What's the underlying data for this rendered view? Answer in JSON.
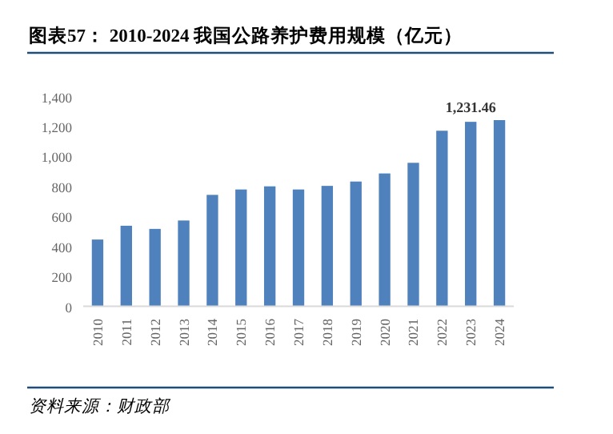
{
  "chart_data": {
    "type": "bar",
    "title": "图表57：  2010-2024  我国公路养护费用规模（亿元）",
    "categories": [
      "2010",
      "2011",
      "2012",
      "2013",
      "2014",
      "2015",
      "2016",
      "2017",
      "2018",
      "2019",
      "2020",
      "2021",
      "2022",
      "2023",
      "2024"
    ],
    "values": [
      446,
      538,
      517,
      573,
      744,
      780,
      801,
      780,
      804,
      833,
      887,
      958,
      1172,
      1231.46,
      1243
    ],
    "value_labels": [
      null,
      null,
      null,
      null,
      null,
      null,
      null,
      null,
      null,
      null,
      null,
      null,
      null,
      "1,231.46",
      null
    ],
    "color": "#4f81bd",
    "ylim": [
      0,
      1400
    ],
    "yticks": [
      {
        "value": 0,
        "label": "0"
      },
      {
        "value": 200,
        "label": "200"
      },
      {
        "value": 400,
        "label": "400"
      },
      {
        "value": 600,
        "label": "600"
      },
      {
        "value": 800,
        "label": "800"
      },
      {
        "value": 1000,
        "label": "1,000"
      },
      {
        "value": 1200,
        "label": "1,200"
      },
      {
        "value": 1400,
        "label": "1,400"
      }
    ],
    "annotations": [
      "资料来源：财政部"
    ]
  }
}
